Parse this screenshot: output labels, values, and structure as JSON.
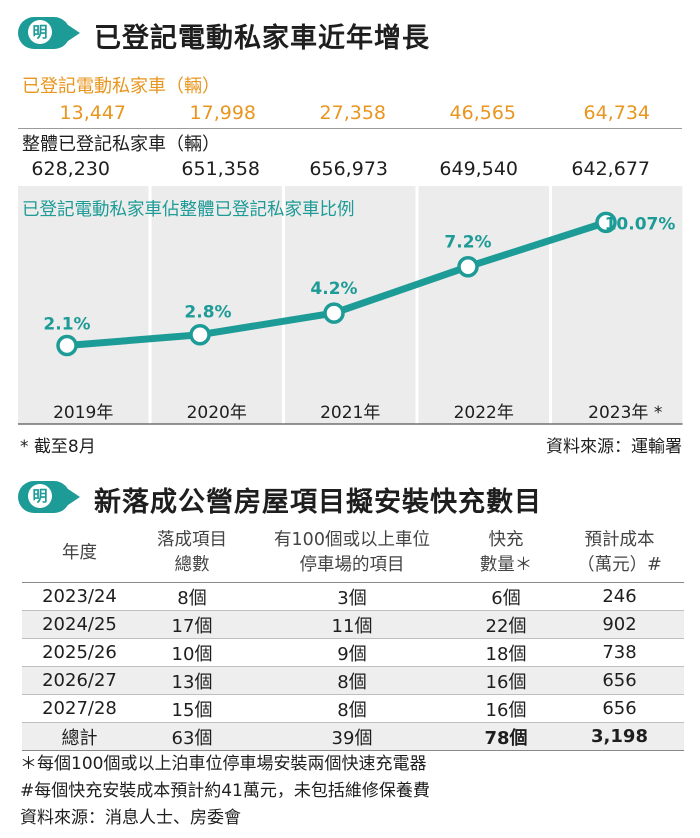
{
  "section1": {
    "badge": "明",
    "title": "已登記電動私家車近年增長",
    "ev_label": "已登記電動私家車（輛）",
    "ev_values": [
      "13,447",
      "17,998",
      "27,358",
      "46,565",
      "64,734"
    ],
    "total_label": "整體已登記私家車（輛）",
    "total_values": [
      "628,230",
      "651,358",
      "656,973",
      "649,540",
      "642,677"
    ],
    "chart_caption": "已登記電動私家車佔整體已登記私家車比例",
    "footnote": "* 截至8月",
    "source": "資料來源：運輸署"
  },
  "chart_data": {
    "type": "line",
    "title": "已登記電動私家車佔整體已登記私家車比例",
    "categories": [
      "2019年",
      "2020年",
      "2021年",
      "2022年",
      "2023年 *"
    ],
    "series": [
      {
        "name": "",
        "values": [
          2.1,
          2.8,
          4.2,
          7.2,
          10.07
        ]
      }
    ],
    "data_labels": [
      "2.1%",
      "2.8%",
      "4.2%",
      "7.2%",
      "10.07%"
    ],
    "ylim": [
      0,
      11
    ],
    "grid": true,
    "colors": {
      "line": "#1d9b96",
      "background": "#ececec",
      "ev_row": "#e8961f"
    }
  },
  "section2": {
    "badge": "明",
    "title": "新落成公營房屋項目擬安裝快充數目",
    "headers": [
      [
        "年度"
      ],
      [
        "落成項目",
        "總數"
      ],
      [
        "有100個或以上車位",
        "停車場的項目"
      ],
      [
        "快充",
        "數量＊"
      ],
      [
        "預計成本",
        "（萬元）#"
      ]
    ],
    "rows": [
      [
        "2023/24",
        "8個",
        "3個",
        "6個",
        "246"
      ],
      [
        "2024/25",
        "17個",
        "11個",
        "22個",
        "902"
      ],
      [
        "2025/26",
        "10個",
        "9個",
        "18個",
        "738"
      ],
      [
        "2026/27",
        "13個",
        "8個",
        "16個",
        "656"
      ],
      [
        "2027/28",
        "15個",
        "8個",
        "16個",
        "656"
      ]
    ],
    "total": [
      "總計",
      "63個",
      "39個",
      "78個",
      "3,198"
    ],
    "notes": [
      "＊每個100個或以上泊車位停車場安裝兩個快速充電器",
      "#每個快充安裝成本預計約41萬元，未包括維修保養費",
      "資料來源：消息人士、房委會"
    ]
  }
}
